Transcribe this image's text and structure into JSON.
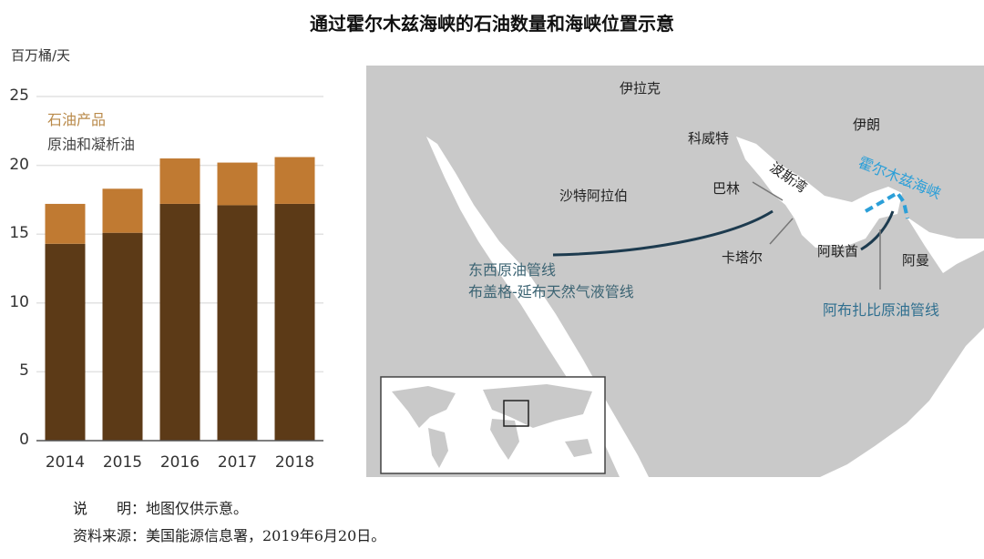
{
  "title": "通过霍尔木兹海峡的石油数量和海峡位置示意",
  "chart_data": {
    "type": "bar",
    "stacked": true,
    "ylabel": "百万桶/天",
    "categories": [
      "2014",
      "2015",
      "2016",
      "2017",
      "2018"
    ],
    "series": [
      {
        "name": "原油和凝析油",
        "values": [
          14.3,
          15.1,
          17.2,
          17.1,
          17.2
        ],
        "color": "#5c3a17"
      },
      {
        "name": "石油产品",
        "values": [
          2.9,
          3.2,
          3.3,
          3.1,
          3.4
        ],
        "color": "#c07a32"
      }
    ],
    "ylim": [
      0,
      25
    ],
    "yticks": [
      "0",
      "5",
      "10",
      "15",
      "20",
      "25"
    ],
    "grid": true,
    "legend": "top-left"
  },
  "map": {
    "labels": {
      "iraq": "伊拉克",
      "iran": "伊朗",
      "kuwait": "科威特",
      "gulf": "波斯湾",
      "hormuz": "霍尔木兹海峡",
      "bahrain": "巴林",
      "saudi": "沙特阿拉伯",
      "qatar": "卡塔尔",
      "uae": "阿联酋",
      "oman": "阿曼",
      "ew_pipeline": "东西原油管线",
      "ngl_pipeline": "布盖格-延布天然气液管线",
      "adcop": "阿布扎比原油管线"
    },
    "colors": {
      "land": "#c9c9c9",
      "pipeline": "#1d3b4f",
      "hormuz": "#2b9fd8",
      "pipeline_label": "#3c6473"
    }
  },
  "notes": {
    "note": "说　　明：地图仅供示意。",
    "source": "资料来源：美国能源信息署，2019年6月20日。"
  }
}
